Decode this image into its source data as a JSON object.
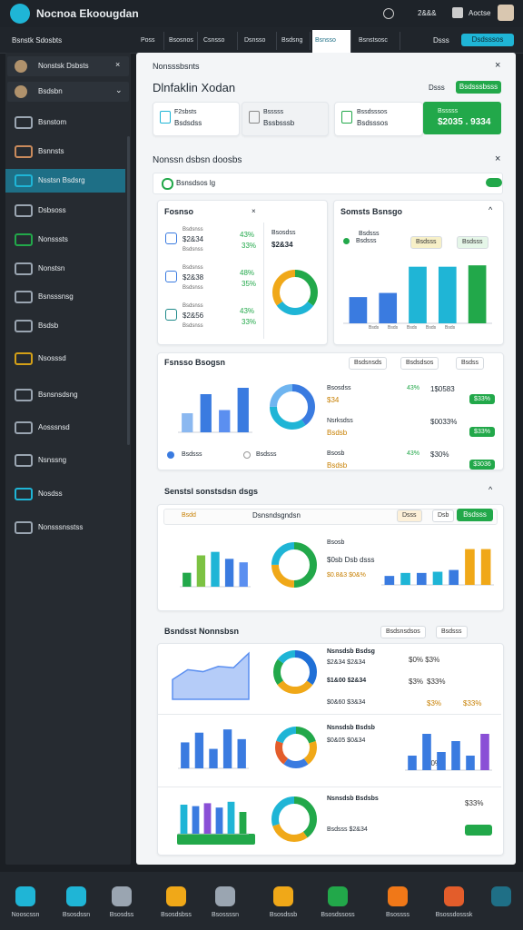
{
  "topbar": {
    "title": "Nocnoa Ekoougdan",
    "stat": "2&&&",
    "user": "Aoctse"
  },
  "nav": {
    "left": "Bsnstk Sdosbts",
    "tabs": [
      "Poss",
      "Bsosnos",
      "Csnsso",
      "Dsnsso",
      "Bsdsng",
      "Bsnsso",
      "Bsnstsosc"
    ],
    "active": 5,
    "right": "Dsss",
    "button": "Dsdsssos"
  },
  "sidebar": {
    "top": [
      "Nonstsk Dsbsts",
      "Bsdsbn"
    ],
    "items": [
      "Bsnstom",
      "Bsnnsts",
      "Nsstsn Bsdsrg",
      "Dsbsoss",
      "Nonsssts",
      "Nonstsn",
      "Bsnsssnsg",
      "Bsdsb",
      "Nsosssd",
      "Bsnsnsdsng",
      "Aosssnsd",
      "Nsnssng",
      "Nosdss",
      "Nonsssnsstss"
    ],
    "active": 2
  },
  "panel": {
    "header": "Nonsssbsnts",
    "title": "Dlnfaklin Xodan",
    "action_text": "Dsss",
    "action_button": "Bsdsssbsss",
    "stat_cards": [
      {
        "label": "F2sbsts",
        "value": "Bsdsdss"
      },
      {
        "label": "Bsssss",
        "value": "Bssbsssb"
      },
      {
        "label": "Bssdsssos",
        "value": "Bsdsssos"
      }
    ],
    "highlight": {
      "label": "Bsssss",
      "value": "$2035 . 9334"
    },
    "section": "Nonssn dsbsn doosbs",
    "filter": "Bsnsdsos lg",
    "card_a": {
      "title": "Fosnso",
      "rows": [
        {
          "sub": "Bsdsnss",
          "amount": "$2&34",
          "pct": "43%",
          "pct2": "33%"
        },
        {
          "sub": "Bsdsnss",
          "amount": "$2&38",
          "pct": "48%",
          "pct2": "35%"
        },
        {
          "sub": "Bsdsnss",
          "amount": "$2&56",
          "pct": "43%",
          "pct2": "33%"
        }
      ],
      "chart_label": "Bsosdss",
      "chart_value": "$2&34"
    },
    "card_b": {
      "title": "Somsts Bsnsgo",
      "legend": [
        "Bsdsss",
        "Bsdsss"
      ],
      "chips": [
        "Bsdsss",
        "Bsdsss"
      ],
      "foot": [
        "Bsds",
        "Bsds",
        "Bsds",
        "Bsds",
        "Bsds"
      ]
    },
    "card_c": {
      "title": "Fsnsso Bsogsn",
      "chips": [
        "Bsdsnsds",
        "Bsdsdsos",
        "Bsdss"
      ],
      "legend": [
        "Bsdsss",
        "Bsdsss"
      ],
      "list": [
        {
          "name": "Bsosdss",
          "value": "$34",
          "pct": "43%",
          "amount": "1$0583",
          "badge": "$33%"
        },
        {
          "name": "Nsrksdss",
          "value": "Bsdsb",
          "pct": "",
          "amount": "$0033%",
          "badge": "$33%"
        },
        {
          "name": "Bsosb",
          "value": "Bsdsb",
          "pct": "43%",
          "amount": "$30%",
          "badge": "$3036"
        }
      ]
    },
    "card_d": {
      "title": "Senstsl sonstsdsn dsgs",
      "search": "Bsdd",
      "center": "Dsnsndsgndsn",
      "right": "Dsss",
      "small": "Dsb",
      "button": "Bsdsss",
      "list": [
        "Bsosb",
        "$0sb Dsb dsss",
        "$0.8&3 $0&%"
      ]
    },
    "card_e": {
      "title": "Bsndsst Nonnsbsn",
      "chips": [
        "Bsdsnsdsos",
        "Bsdsss"
      ],
      "list": [
        "Nsnsdsb Bsdsg",
        "$2&34 $2&34",
        "$1&00 $2&34",
        "$0&60 $3&34",
        "Nsnsdsb Bsdsb",
        "$0&05 $0&34",
        "Nsnsdsb Bsdsbs",
        "Bsdsss $2&34"
      ],
      "pcts": [
        "$0% $3%",
        "$33%",
        "$3%",
        "$3%",
        "$33%",
        "$0%",
        "$33%"
      ]
    }
  },
  "charts": [
    {
      "type": "donut",
      "values": [
        35,
        30,
        35
      ],
      "colors": [
        "#22a84a",
        "#1fb5d6",
        "#f0a818"
      ]
    },
    {
      "type": "bar",
      "values": [
        38,
        44,
        82,
        82,
        84
      ],
      "colors": [
        "#3a7be0",
        "#3a7be0",
        "#1fb5d6",
        "#1fb5d6",
        "#22a84a"
      ],
      "ylim": [
        0,
        100
      ]
    },
    {
      "type": "bar",
      "values": [
        30,
        60,
        35,
        70
      ],
      "colors": [
        "#8bb8f0",
        "#3a7be0",
        "#5b8ff0",
        "#3a7be0"
      ],
      "ylim": [
        0,
        80
      ]
    },
    {
      "type": "donut",
      "values": [
        40,
        35,
        25
      ],
      "colors": [
        "#3a7be0",
        "#1fb5d6",
        "#6fb5f0"
      ]
    },
    {
      "type": "bar",
      "values": [
        20,
        45,
        50,
        40,
        35
      ],
      "colors": [
        "#22a84a",
        "#7cc242",
        "#1fb5d6",
        "#3a7be0",
        "#5b8ff0"
      ],
      "ylim": [
        0,
        60
      ]
    },
    {
      "type": "donut",
      "values": [
        50,
        25,
        25
      ],
      "colors": [
        "#22a84a",
        "#f0a818",
        "#1fb5d6"
      ]
    },
    {
      "type": "bar",
      "values": [
        15,
        20,
        20,
        22,
        25,
        60,
        60
      ],
      "colors": [
        "#3a7be0",
        "#1fb5d6",
        "#3a7be0",
        "#1fb5d6",
        "#3a7be0",
        "#f0a818",
        "#f0a818"
      ],
      "ylim": [
        0,
        70
      ]
    },
    {
      "type": "area",
      "values": [
        30,
        45,
        42,
        50,
        48,
        70
      ],
      "color": "#5b8ff0",
      "ylim": [
        0,
        80
      ]
    },
    {
      "type": "donut",
      "values": [
        35,
        30,
        20,
        15
      ],
      "colors": [
        "#1f6fd6",
        "#f0a818",
        "#22a84a",
        "#1fb5d6"
      ]
    },
    {
      "type": "bar",
      "values": [
        40,
        55,
        30,
        60,
        45
      ],
      "colors": [
        "#3a7be0",
        "#3a7be0",
        "#3a7be0",
        "#3a7be0",
        "#3a7be0"
      ],
      "ylim": [
        0,
        70
      ]
    },
    {
      "type": "donut",
      "values": [
        20,
        20,
        20,
        20,
        20
      ],
      "colors": [
        "#22a84a",
        "#f0a818",
        "#3a7be0",
        "#e35d2b",
        "#1fb5d6"
      ]
    },
    {
      "type": "bar",
      "values": [
        20,
        50,
        25,
        40,
        20,
        50
      ],
      "colors": [
        "#3a7be0",
        "#3a7be0",
        "#3a7be0",
        "#3a7be0",
        "#3a7be0",
        "#8a4fd6"
      ],
      "ylim": [
        0,
        60
      ]
    },
    {
      "type": "bar",
      "values": [
        40,
        38,
        42,
        36,
        44,
        30
      ],
      "colors": [
        "#1fb5d6",
        "#3a7be0",
        "#8a4fd6",
        "#3a7be0",
        "#1fb5d6",
        "#22a84a"
      ],
      "ylim": [
        0,
        50
      ]
    },
    {
      "type": "donut",
      "values": [
        40,
        30,
        30
      ],
      "colors": [
        "#22a84a",
        "#f0a818",
        "#1fb5d6"
      ]
    }
  ],
  "bottom_nav": [
    "Nooscssn",
    "Bsosdssn",
    "Bsosdss",
    "Bsosdsbss",
    "Bsossssn",
    "Bsosdssb",
    "Bsosdssoss",
    "Bsossss",
    "Bsossdosssk"
  ]
}
